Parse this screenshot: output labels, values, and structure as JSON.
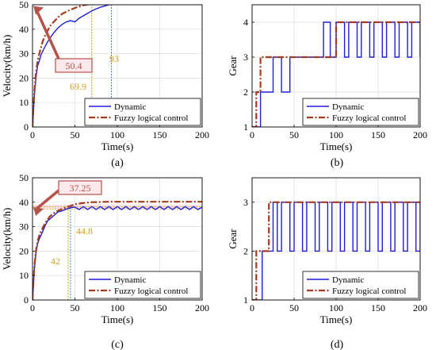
{
  "figure": {
    "panel_labels": [
      "(a)",
      "(b)",
      "(c)",
      "(d)"
    ]
  },
  "colors": {
    "dynamic": "#1f1fd6",
    "fuzzy": "#a23b1f",
    "annotation_text": "#d4a020",
    "box_border": "#b5524a",
    "box_fill": "#fde9ec",
    "highlight": "#f8d8e4",
    "guide_dynamic": "#3a7bd5",
    "guide_fuzzy": "#c8a000"
  },
  "chart_data": [
    {
      "id": "a",
      "type": "line",
      "xlabel": "Time(s)",
      "ylabel": "Velocity(km/h)",
      "xlim": [
        0,
        200
      ],
      "ylim": [
        0,
        50
      ],
      "xticks": [
        0,
        50,
        100,
        150,
        200
      ],
      "yticks": [
        0,
        10,
        20,
        30,
        40,
        50
      ],
      "grid": true,
      "legend_position": "bottom-right",
      "series": [
        {
          "name": "Dynamic",
          "style": "solid",
          "x": [
            0,
            2,
            4,
            6,
            8,
            10,
            12,
            15,
            18,
            20,
            25,
            30,
            35,
            40,
            45,
            50,
            55,
            60,
            65,
            70,
            75,
            80,
            85,
            90,
            95,
            100,
            110,
            120,
            130,
            140,
            150,
            160,
            170,
            180,
            190,
            200
          ],
          "y": [
            0,
            12,
            20,
            25,
            27,
            29.5,
            31,
            33,
            35,
            36,
            38.5,
            40.5,
            42,
            43,
            43.5,
            43,
            44.5,
            45.5,
            46.5,
            47.5,
            48.3,
            49,
            49.5,
            50,
            50.3,
            50.6,
            50.9,
            51,
            51.1,
            51.1,
            51.1,
            51.2,
            51.2,
            51.2,
            51.2,
            51.2
          ]
        },
        {
          "name": "Fuzzy logical control",
          "style": "dashdot",
          "x": [
            0,
            2,
            4,
            6,
            8,
            10,
            12,
            15,
            18,
            20,
            25,
            30,
            35,
            40,
            45,
            50,
            55,
            60,
            65,
            70,
            75,
            80,
            90,
            100,
            120,
            140,
            160,
            180,
            200
          ],
          "y": [
            0,
            14,
            22,
            27,
            30,
            32.5,
            35,
            37.5,
            39.5,
            41,
            43,
            44.8,
            46.3,
            47.2,
            48,
            48.7,
            49.3,
            49.8,
            50.1,
            50.3,
            50.4,
            50.4,
            50.4,
            50.4,
            50.4,
            50.4,
            50.4,
            50.4,
            50.4
          ]
        }
      ],
      "annotations": {
        "value_box": "50.4",
        "guide_labels": [
          {
            "text": "69.9",
            "x": 69.9,
            "series": "fuzzy"
          },
          {
            "text": "93",
            "x": 93,
            "series": "dynamic"
          }
        ],
        "reference_levels": [
          50.4,
          51.2
        ]
      }
    },
    {
      "id": "b",
      "type": "line",
      "xlabel": "Time(s)",
      "ylabel": "Gear",
      "xlim": [
        0,
        200
      ],
      "ylim": [
        1,
        4.5
      ],
      "xticks": [
        0,
        50,
        100,
        150,
        200
      ],
      "yticks": [
        1,
        2,
        3,
        4
      ],
      "grid": true,
      "legend_position": "bottom-right",
      "series": [
        {
          "name": "Dynamic",
          "style": "step",
          "x": [
            0,
            10,
            15,
            25,
            35,
            45,
            85,
            93,
            100,
            110,
            115,
            125,
            130,
            140,
            145,
            155,
            160,
            170,
            175,
            185,
            190,
            200
          ],
          "y": [
            1,
            2,
            2,
            3,
            2,
            3,
            4,
            3,
            4,
            3,
            4,
            3,
            4,
            3,
            4,
            3,
            4,
            3,
            4,
            3,
            4,
            3
          ]
        },
        {
          "name": "Fuzzy logical control",
          "style": "step-dashdot",
          "x": [
            0,
            5,
            10,
            100,
            200
          ],
          "y": [
            1,
            2,
            3,
            4,
            4
          ]
        }
      ]
    },
    {
      "id": "c",
      "type": "line",
      "xlabel": "Time(s)",
      "ylabel": "Velocity(km/h)",
      "xlim": [
        0,
        200
      ],
      "ylim": [
        0,
        50
      ],
      "xticks": [
        0,
        50,
        100,
        150,
        200
      ],
      "yticks": [
        0,
        10,
        20,
        30,
        40,
        50
      ],
      "grid": true,
      "legend_position": "bottom-right",
      "series": [
        {
          "name": "Dynamic",
          "style": "solid",
          "x": [
            0,
            2,
            4,
            6,
            8,
            10,
            12,
            15,
            18,
            20,
            25,
            30,
            35,
            40,
            45,
            50,
            55,
            60,
            65,
            70,
            75,
            80,
            85,
            90,
            95,
            100,
            105,
            110,
            115,
            120,
            125,
            130,
            135,
            140,
            145,
            150,
            155,
            160,
            165,
            170,
            175,
            180,
            185,
            190,
            195,
            200
          ],
          "y": [
            0,
            12,
            19,
            23,
            25,
            26.5,
            28,
            30.5,
            32.5,
            33,
            34.5,
            36,
            36.5,
            37.2,
            37.8,
            38,
            37,
            38.2,
            37,
            38.2,
            37,
            38.2,
            37,
            38.2,
            37,
            38.2,
            37,
            38.2,
            37,
            38.2,
            37,
            38.2,
            37,
            38.2,
            37,
            38.2,
            37,
            38.2,
            37,
            38.2,
            37,
            38.2,
            37,
            38.2,
            37,
            38
          ]
        },
        {
          "name": "Fuzzy logical control",
          "style": "dashdot",
          "x": [
            0,
            2,
            4,
            6,
            8,
            10,
            12,
            15,
            18,
            20,
            25,
            30,
            35,
            40,
            45,
            50,
            60,
            70,
            80,
            90,
            100,
            120,
            140,
            160,
            180,
            200
          ],
          "y": [
            0,
            13,
            20,
            24,
            26.5,
            28,
            29.5,
            31.5,
            33,
            34,
            35.5,
            36.5,
            37.3,
            38,
            38.5,
            39.2,
            39.7,
            40,
            40.1,
            40.2,
            40.2,
            40.2,
            40.2,
            40.2,
            40.2,
            40.2
          ]
        }
      ],
      "annotations": {
        "value_box": "37.25",
        "guide_labels": [
          {
            "text": "42",
            "x": 42,
            "series": "fuzzy"
          },
          {
            "text": "44.8",
            "x": 44.8,
            "series": "dynamic"
          }
        ],
        "reference_levels": [
          37.25,
          38.2
        ]
      }
    },
    {
      "id": "d",
      "type": "line",
      "xlabel": "Time(s)",
      "ylabel": "Gear",
      "xlim": [
        0,
        200
      ],
      "ylim": [
        1,
        3.5
      ],
      "xticks": [
        0,
        50,
        100,
        150,
        200
      ],
      "yticks": [
        1,
        2,
        3
      ],
      "grid": true,
      "legend_position": "bottom-right",
      "series": [
        {
          "name": "Dynamic",
          "style": "step",
          "x": [
            0,
            12,
            25,
            30,
            35,
            45,
            50,
            60,
            65,
            75,
            80,
            90,
            95,
            105,
            110,
            120,
            125,
            135,
            140,
            150,
            155,
            165,
            170,
            180,
            185,
            195,
            200
          ],
          "y": [
            1,
            2,
            3,
            2,
            3,
            2,
            3,
            2,
            3,
            2,
            3,
            2,
            3,
            2,
            3,
            2,
            3,
            2,
            3,
            2,
            3,
            2,
            3,
            2,
            3,
            2,
            3
          ]
        },
        {
          "name": "Fuzzy logical control",
          "style": "step-dashdot",
          "x": [
            0,
            5,
            20,
            200
          ],
          "y": [
            1,
            2,
            3,
            3
          ]
        }
      ]
    }
  ]
}
